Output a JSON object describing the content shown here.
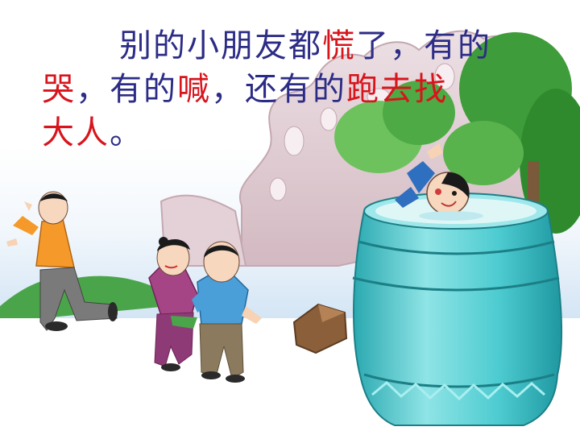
{
  "slide": {
    "text": {
      "l1_a": "别的小朋友都",
      "l1_hl": "慌",
      "l1_b": "了，有的",
      "l2_hl1": "哭",
      "l2_a": "，有的",
      "l2_hl2": "喊",
      "l2_b": "，还有的",
      "l2_hl3": "跑去找",
      "l3_hl": "大人",
      "l3_end": "。"
    },
    "colors": {
      "body_text": "#2c2c86",
      "highlight": "#d8141c",
      "sky": "#bcd7ef",
      "rock": "#e0c9cf",
      "jar": "#48c7cc",
      "tree": "#3f9c3a"
    },
    "illustration": {
      "scene": "children-and-water-jar",
      "icons": [
        "running-boy",
        "crying-girl",
        "standing-boy",
        "water-jar",
        "drowning-child",
        "stone",
        "tree",
        "rock"
      ]
    }
  }
}
